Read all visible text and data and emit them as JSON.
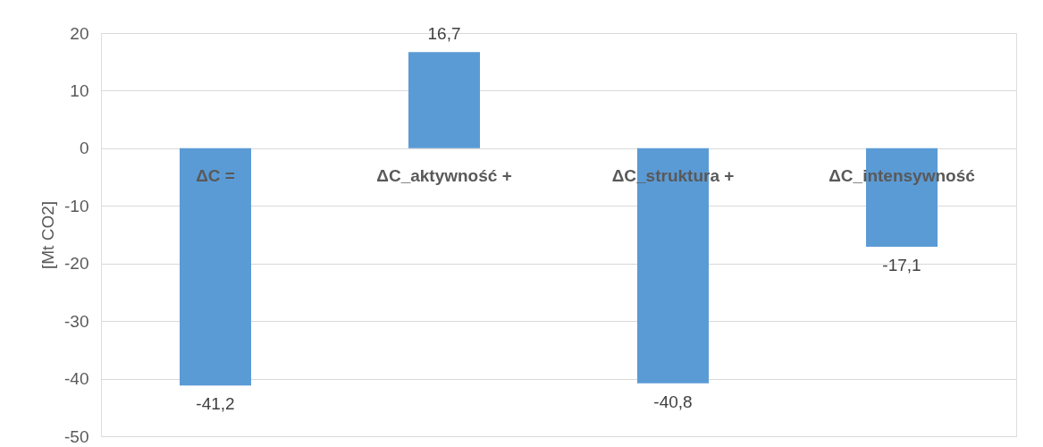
{
  "chart_data": {
    "type": "bar",
    "ylabel": "[Mt CO2]",
    "categories": [
      "ΔC  =",
      "ΔC_aktywność    +",
      "ΔC_struktura    +",
      "ΔC_intensywność"
    ],
    "values": [
      -41.2,
      16.7,
      -40.8,
      -17.1
    ],
    "value_labels": [
      "-41,2",
      "16,7",
      "-40,8",
      "-17,1"
    ],
    "color": "#5b9bd5",
    "ylim": [
      -50,
      20
    ],
    "yticks": [
      -50,
      -40,
      -30,
      -20,
      -10,
      0,
      10,
      20
    ],
    "grid": "y"
  }
}
